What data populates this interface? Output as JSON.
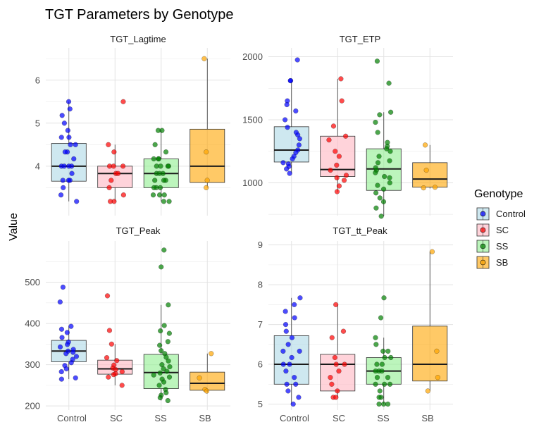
{
  "chart_data": {
    "type": "box",
    "title": "TGT Parameters by Genotype",
    "ylabel": "Value",
    "categories": [
      "Control",
      "SC",
      "SS",
      "SB"
    ],
    "colors": {
      "Control": {
        "point": "#0000ff",
        "fill": "#add8e6"
      },
      "SC": {
        "point": "#ff0000",
        "fill": "#ffb6c1"
      },
      "SS": {
        "point": "#008000",
        "fill": "#90ee90"
      },
      "SB": {
        "point": "#ffa500",
        "fill": "#ffa500"
      }
    },
    "legend": {
      "title": "Genotype",
      "position": "right",
      "entries": [
        "Control",
        "SC",
        "SS",
        "SB"
      ]
    },
    "panels": [
      {
        "name": "TGT_Lagtime",
        "ylim": [
          2.85,
          6.75
        ],
        "yticks": [
          4,
          5,
          6
        ],
        "boxes": [
          {
            "q1": 3.65,
            "median": 4.0,
            "q3": 4.53,
            "wlo": 3.18,
            "whi": 5.5,
            "points": [
              5.5,
              5.33,
              5.18,
              5.0,
              4.83,
              4.67,
              4.67,
              4.5,
              4.5,
              4.33,
              4.33,
              4.17,
              4.0,
              4.0,
              4.0,
              4.0,
              3.83,
              3.67,
              3.67,
              3.67,
              3.5,
              3.33,
              3.18
            ]
          },
          {
            "q1": 3.5,
            "median": 3.83,
            "q3": 4.0,
            "wlo": 3.18,
            "whi": 4.5,
            "points": [
              5.5,
              4.5,
              4.33,
              4.0,
              4.0,
              4.0,
              3.83,
              3.83,
              3.67,
              3.5,
              3.33,
              3.18,
              3.18
            ]
          },
          {
            "q1": 3.5,
            "median": 3.83,
            "q3": 4.17,
            "wlo": 3.18,
            "whi": 4.83,
            "points": [
              4.83,
              4.83,
              4.5,
              4.33,
              4.17,
              4.17,
              4.17,
              4.0,
              4.0,
              4.0,
              4.0,
              3.83,
              3.83,
              3.83,
              3.67,
              3.67,
              3.67,
              3.5,
              3.5,
              3.5,
              3.33,
              3.33,
              3.33,
              3.18,
              3.18
            ]
          },
          {
            "q1": 3.62,
            "median": 4.0,
            "q3": 4.86,
            "wlo": 3.5,
            "whi": 6.5,
            "points": [
              6.5,
              4.33,
              3.67,
              3.5
            ]
          }
        ]
      },
      {
        "name": "TGT_ETP",
        "ylim": [
          740,
          2070
        ],
        "yticks": [
          1000,
          1500,
          2000
        ],
        "boxes": [
          {
            "q1": 1165,
            "median": 1260,
            "q3": 1445,
            "wlo": 1075,
            "whi": 1810,
            "points": [
              1975,
              1810,
              1810,
              1650,
              1620,
              1570,
              1500,
              1440,
              1400,
              1380,
              1350,
              1300,
              1260,
              1240,
              1210,
              1190,
              1160,
              1150,
              1130,
              1110,
              1075
            ]
          },
          {
            "q1": 1050,
            "median": 1105,
            "q3": 1370,
            "wlo": 930,
            "whi": 1825,
            "points": [
              1825,
              1650,
              1450,
              1370,
              1340,
              1250,
              1210,
              1140,
              1100,
              1060,
              1040,
              1020,
              975,
              930
            ]
          },
          {
            "q1": 940,
            "median": 1110,
            "q3": 1270,
            "wlo": 735,
            "whi": 1560,
            "points": [
              1965,
              1790,
              1560,
              1540,
              1480,
              1400,
              1320,
              1290,
              1270,
              1250,
              1210,
              1175,
              1160,
              1120,
              1100,
              1080,
              1050,
              1040,
              1000,
              980,
              950,
              920,
              880,
              850,
              800,
              735
            ]
          },
          {
            "q1": 965,
            "median": 1030,
            "q3": 1160,
            "wlo": 955,
            "whi": 1300,
            "points": [
              1300,
              1100,
              965,
              960
            ]
          }
        ]
      },
      {
        "name": "TGT_Peak",
        "ylim": [
          190,
          600
        ],
        "yticks": [
          200,
          300,
          400,
          500
        ],
        "boxes": [
          {
            "q1": 307,
            "median": 333,
            "q3": 359,
            "wlo": 265,
            "whi": 393,
            "points": [
              488,
              452,
              393,
              386,
              378,
              366,
              355,
              349,
              343,
              337,
              333,
              330,
              327,
              320,
              313,
              305,
              298,
              290,
              283,
              268,
              265
            ]
          },
          {
            "q1": 277,
            "median": 290,
            "q3": 311,
            "wlo": 250,
            "whi": 350,
            "points": [
              467,
              383,
              350,
              317,
              310,
              299,
              292,
              288,
              283,
              278,
              276,
              270,
              250
            ]
          },
          {
            "q1": 242,
            "median": 281,
            "q3": 325,
            "wlo": 213,
            "whi": 445,
            "points": [
              578,
              537,
              445,
              395,
              382,
              376,
              356,
              347,
              334,
              327,
              318,
              309,
              300,
              295,
              290,
              284,
              280,
              275,
              270,
              265,
              258,
              250,
              240,
              232,
              226,
              220,
              213
            ]
          },
          {
            "q1": 238,
            "median": 255,
            "q3": 282,
            "wlo": 232,
            "whi": 327,
            "points": [
              327,
              268,
              240,
              236
            ]
          }
        ]
      },
      {
        "name": "TGT_tt_Peak",
        "ylim": [
          4.85,
          9.1
        ],
        "yticks": [
          5,
          6,
          7,
          8,
          9
        ],
        "boxes": [
          {
            "q1": 5.5,
            "median": 6.0,
            "q3": 6.72,
            "wlo": 5.0,
            "whi": 7.67,
            "points": [
              7.67,
              7.5,
              7.33,
              7.17,
              7.0,
              6.83,
              6.67,
              6.5,
              6.33,
              6.33,
              6.17,
              6.0,
              6.0,
              5.83,
              5.67,
              5.5,
              5.5,
              5.33,
              5.17,
              5.0
            ]
          },
          {
            "q1": 5.33,
            "median": 6.0,
            "q3": 6.25,
            "wlo": 5.17,
            "whi": 7.5,
            "points": [
              7.5,
              6.83,
              6.67,
              6.17,
              6.0,
              6.0,
              5.83,
              5.67,
              5.5,
              5.33,
              5.17,
              5.17
            ]
          },
          {
            "q1": 5.5,
            "median": 5.83,
            "q3": 6.17,
            "wlo": 5.0,
            "whi": 6.67,
            "points": [
              7.67,
              7.17,
              6.67,
              6.5,
              6.33,
              6.33,
              6.17,
              6.17,
              6.0,
              6.0,
              5.83,
              5.83,
              5.83,
              5.67,
              5.67,
              5.5,
              5.5,
              5.5,
              5.33,
              5.17,
              5.17,
              5.0,
              5.0,
              5.0
            ]
          },
          {
            "q1": 5.58,
            "median": 6.0,
            "q3": 6.96,
            "wlo": 5.33,
            "whi": 8.83,
            "points": [
              8.83,
              6.33,
              5.67,
              5.33
            ]
          }
        ]
      }
    ]
  }
}
